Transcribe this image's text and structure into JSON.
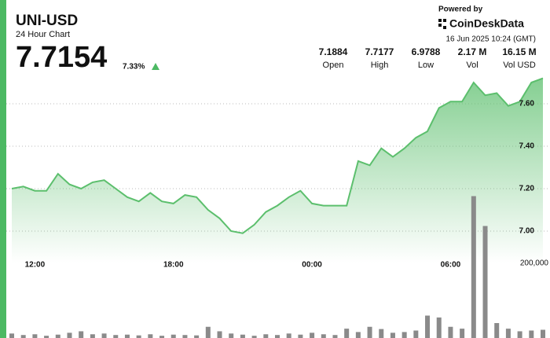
{
  "header": {
    "title": "UNI-USD",
    "subtitle": "24 Hour Chart",
    "price": "7.7154",
    "change": "7.33%",
    "powered_by": "Powered by",
    "brand": "CoinDeskData",
    "timestamp": "16 Jun 2025 10:24 (GMT)",
    "stats": [
      {
        "value": "7.1884",
        "label": "Open"
      },
      {
        "value": "7.7177",
        "label": "High"
      },
      {
        "value": "6.9788",
        "label": "Low"
      },
      {
        "value": "2.17 M",
        "label": "Vol"
      },
      {
        "value": "16.15 M",
        "label": "Vol USD"
      }
    ]
  },
  "chart_data": {
    "type": "line",
    "x": [
      "11:00",
      "11:30",
      "12:00",
      "12:30",
      "13:00",
      "13:30",
      "14:00",
      "14:30",
      "15:00",
      "15:30",
      "16:00",
      "16:30",
      "17:00",
      "17:30",
      "18:00",
      "18:30",
      "19:00",
      "19:30",
      "20:00",
      "20:30",
      "21:00",
      "21:30",
      "22:00",
      "22:30",
      "23:00",
      "23:30",
      "00:00",
      "00:30",
      "01:00",
      "01:30",
      "02:00",
      "02:30",
      "03:00",
      "03:30",
      "04:00",
      "04:30",
      "05:00",
      "05:30",
      "06:00",
      "06:30",
      "07:00",
      "07:30",
      "08:00",
      "08:30",
      "09:00",
      "09:30",
      "10:00"
    ],
    "xticks": [
      "12:00",
      "18:00",
      "00:00",
      "06:00"
    ],
    "series": [
      {
        "color": "#5cbf6d",
        "values": [
          7.2,
          7.21,
          7.19,
          7.19,
          7.27,
          7.22,
          7.2,
          7.23,
          7.24,
          7.2,
          7.16,
          7.14,
          7.18,
          7.14,
          7.13,
          7.17,
          7.16,
          7.1,
          7.06,
          7.0,
          6.99,
          7.03,
          7.09,
          7.12,
          7.16,
          7.19,
          7.13,
          7.12,
          7.12,
          7.12,
          7.33,
          7.31,
          7.39,
          7.35,
          7.39,
          7.44,
          7.47,
          7.58,
          7.61,
          7.61,
          7.7,
          7.64,
          7.65,
          7.59,
          7.61,
          7.7,
          7.72
        ]
      },
      {
        "color": "#8a8a8a",
        "axis": "y2",
        "values": [
          12000,
          8000,
          10000,
          6000,
          9000,
          14000,
          18000,
          10000,
          12000,
          8000,
          9000,
          7000,
          10000,
          6000,
          9000,
          8000,
          7000,
          30000,
          18000,
          12000,
          9000,
          6000,
          10000,
          8000,
          12000,
          9000,
          14000,
          10000,
          8000,
          25000,
          16000,
          30000,
          24000,
          14000,
          16000,
          20000,
          60000,
          55000,
          30000,
          25000,
          380000,
          300000,
          40000,
          25000,
          18000,
          20000,
          22000
        ]
      }
    ],
    "ylim": [
      6.85,
      7.75
    ],
    "yticks": [
      {
        "value": 7.0,
        "label": "7.00"
      },
      {
        "value": 7.2,
        "label": "7.20"
      },
      {
        "value": 7.4,
        "label": "7.40"
      },
      {
        "value": 7.6,
        "label": "7.60"
      }
    ],
    "y2lim": [
      0,
      400000
    ],
    "y2ticks": [
      {
        "value": 200000,
        "label": "200,000"
      }
    ],
    "grid": true
  }
}
